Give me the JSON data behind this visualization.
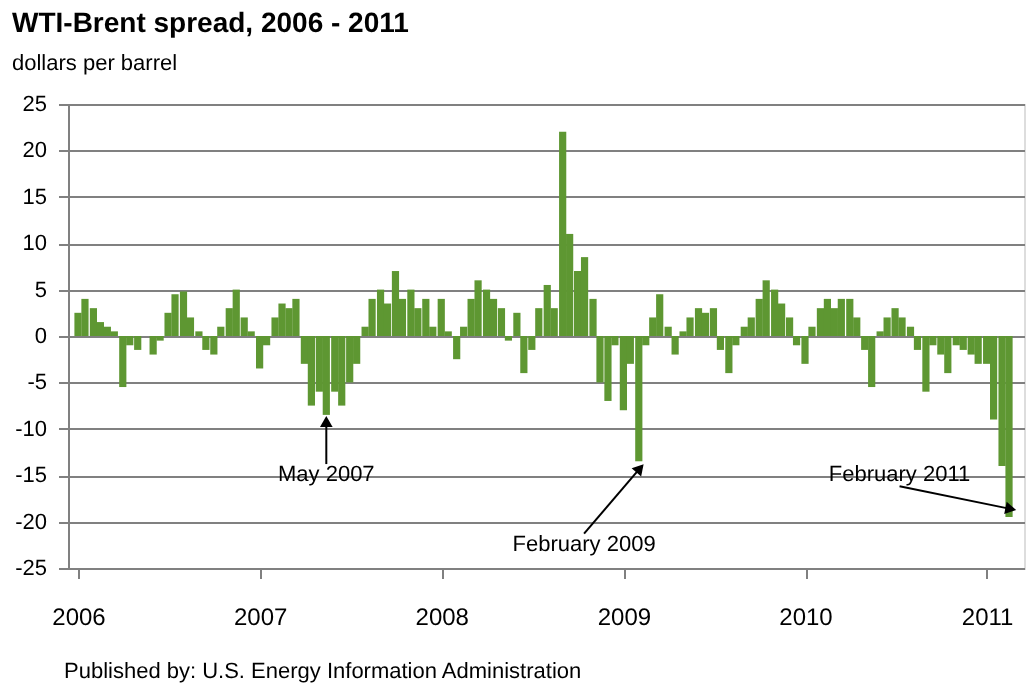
{
  "chart_data": {
    "type": "bar",
    "title": "WTI-Brent spread, 2006 - 2011",
    "ylabel": "dollars per barrel",
    "x": [
      "2006-01-01",
      "2006-01-15",
      "2006-02-01",
      "2006-02-15",
      "2006-03-01",
      "2006-03-15",
      "2006-04-01",
      "2006-04-15",
      "2006-05-01",
      "2006-05-15",
      "2006-06-01",
      "2006-06-15",
      "2006-07-01",
      "2006-07-15",
      "2006-08-01",
      "2006-08-15",
      "2006-09-01",
      "2006-09-15",
      "2006-10-01",
      "2006-10-15",
      "2006-11-01",
      "2006-11-15",
      "2006-12-01",
      "2006-12-15",
      "2007-01-01",
      "2007-01-15",
      "2007-02-01",
      "2007-02-15",
      "2007-03-01",
      "2007-03-15",
      "2007-04-01",
      "2007-04-15",
      "2007-05-01",
      "2007-05-15",
      "2007-06-01",
      "2007-06-15",
      "2007-07-01",
      "2007-07-15",
      "2007-08-01",
      "2007-08-15",
      "2007-09-01",
      "2007-09-15",
      "2007-10-01",
      "2007-10-15",
      "2007-11-01",
      "2007-11-15",
      "2007-12-01",
      "2007-12-15",
      "2008-01-01",
      "2008-01-15",
      "2008-02-01",
      "2008-02-15",
      "2008-03-01",
      "2008-03-15",
      "2008-04-01",
      "2008-04-15",
      "2008-05-01",
      "2008-05-15",
      "2008-06-01",
      "2008-06-15",
      "2008-07-01",
      "2008-07-15",
      "2008-08-01",
      "2008-08-15",
      "2008-09-01",
      "2008-09-15",
      "2008-10-01",
      "2008-10-15",
      "2008-11-01",
      "2008-11-15",
      "2008-12-01",
      "2008-12-15",
      "2009-01-01",
      "2009-01-15",
      "2009-02-01",
      "2009-02-15",
      "2009-03-01",
      "2009-03-15",
      "2009-04-01",
      "2009-04-15",
      "2009-05-01",
      "2009-05-15",
      "2009-06-01",
      "2009-06-15",
      "2009-07-01",
      "2009-07-15",
      "2009-08-01",
      "2009-08-15",
      "2009-09-01",
      "2009-09-15",
      "2009-10-01",
      "2009-10-15",
      "2009-11-01",
      "2009-11-15",
      "2009-12-01",
      "2009-12-15",
      "2010-01-01",
      "2010-01-15",
      "2010-02-01",
      "2010-02-15",
      "2010-03-01",
      "2010-03-15",
      "2010-04-01",
      "2010-04-15",
      "2010-05-01",
      "2010-05-15",
      "2010-06-01",
      "2010-06-15",
      "2010-07-01",
      "2010-07-15",
      "2010-08-01",
      "2010-08-15",
      "2010-09-01",
      "2010-09-15",
      "2010-10-01",
      "2010-10-15",
      "2010-11-01",
      "2010-11-15",
      "2010-12-01",
      "2010-12-15",
      "2011-01-01",
      "2011-01-15",
      "2011-02-01",
      "2011-02-15"
    ],
    "series": [
      {
        "color": "#5e9732",
        "values": [
          2.5,
          4,
          3,
          1.5,
          1,
          0.5,
          -5.5,
          -1,
          -1.5,
          0,
          -2,
          -0.5,
          2.5,
          4.5,
          4.8,
          2,
          0.5,
          -1.5,
          -2,
          1,
          3,
          5,
          2,
          0.5,
          -3.5,
          -1,
          2,
          3.5,
          3,
          4,
          -3,
          -7.5,
          -6,
          -8.5,
          -6,
          -7.5,
          -5,
          -3,
          1,
          4,
          5,
          3.5,
          7,
          4,
          5,
          3,
          4,
          1,
          4,
          0.5,
          -2.5,
          1,
          4,
          6,
          5,
          4,
          3,
          -0.5,
          2.5,
          -4,
          -1.5,
          3,
          5.5,
          3,
          22,
          11,
          7,
          8.5,
          4,
          -5,
          -7,
          -1,
          -8,
          -3,
          -13.5,
          -1,
          2,
          4.5,
          1,
          -2,
          0.5,
          2,
          3,
          2.5,
          3,
          -1.5,
          -4,
          -1,
          1,
          2,
          4,
          6,
          5,
          3.5,
          2,
          -1,
          -3,
          1,
          3,
          4,
          3,
          4,
          4,
          2,
          -1.5,
          -5.5,
          0.5,
          2,
          3,
          2,
          1,
          -1.5,
          -6,
          -1,
          -2,
          -4,
          -1,
          -1.5,
          -2,
          -3,
          -3,
          -9,
          -14,
          -19.5
        ]
      }
    ],
    "xlim": [
      "2006-01-01",
      "2011-02-25"
    ],
    "xticks": [
      "2006",
      "2007",
      "2008",
      "2009",
      "2010",
      "2011"
    ],
    "ylim": [
      -25,
      25
    ],
    "yticks": [
      -25,
      -20,
      -15,
      -10,
      -5,
      0,
      5,
      10,
      15,
      20,
      25
    ],
    "grid": "y",
    "annotations": [
      {
        "text": "May 2007",
        "x": "2007-05-15",
        "y": -8.5
      },
      {
        "text": "February 2009",
        "x": "2009-02-01",
        "y": -13.5
      },
      {
        "text": "February 2011",
        "x": "2011-02-15",
        "y": -19.5
      },
      "Published by: U.S. Energy Information Administration"
    ]
  }
}
